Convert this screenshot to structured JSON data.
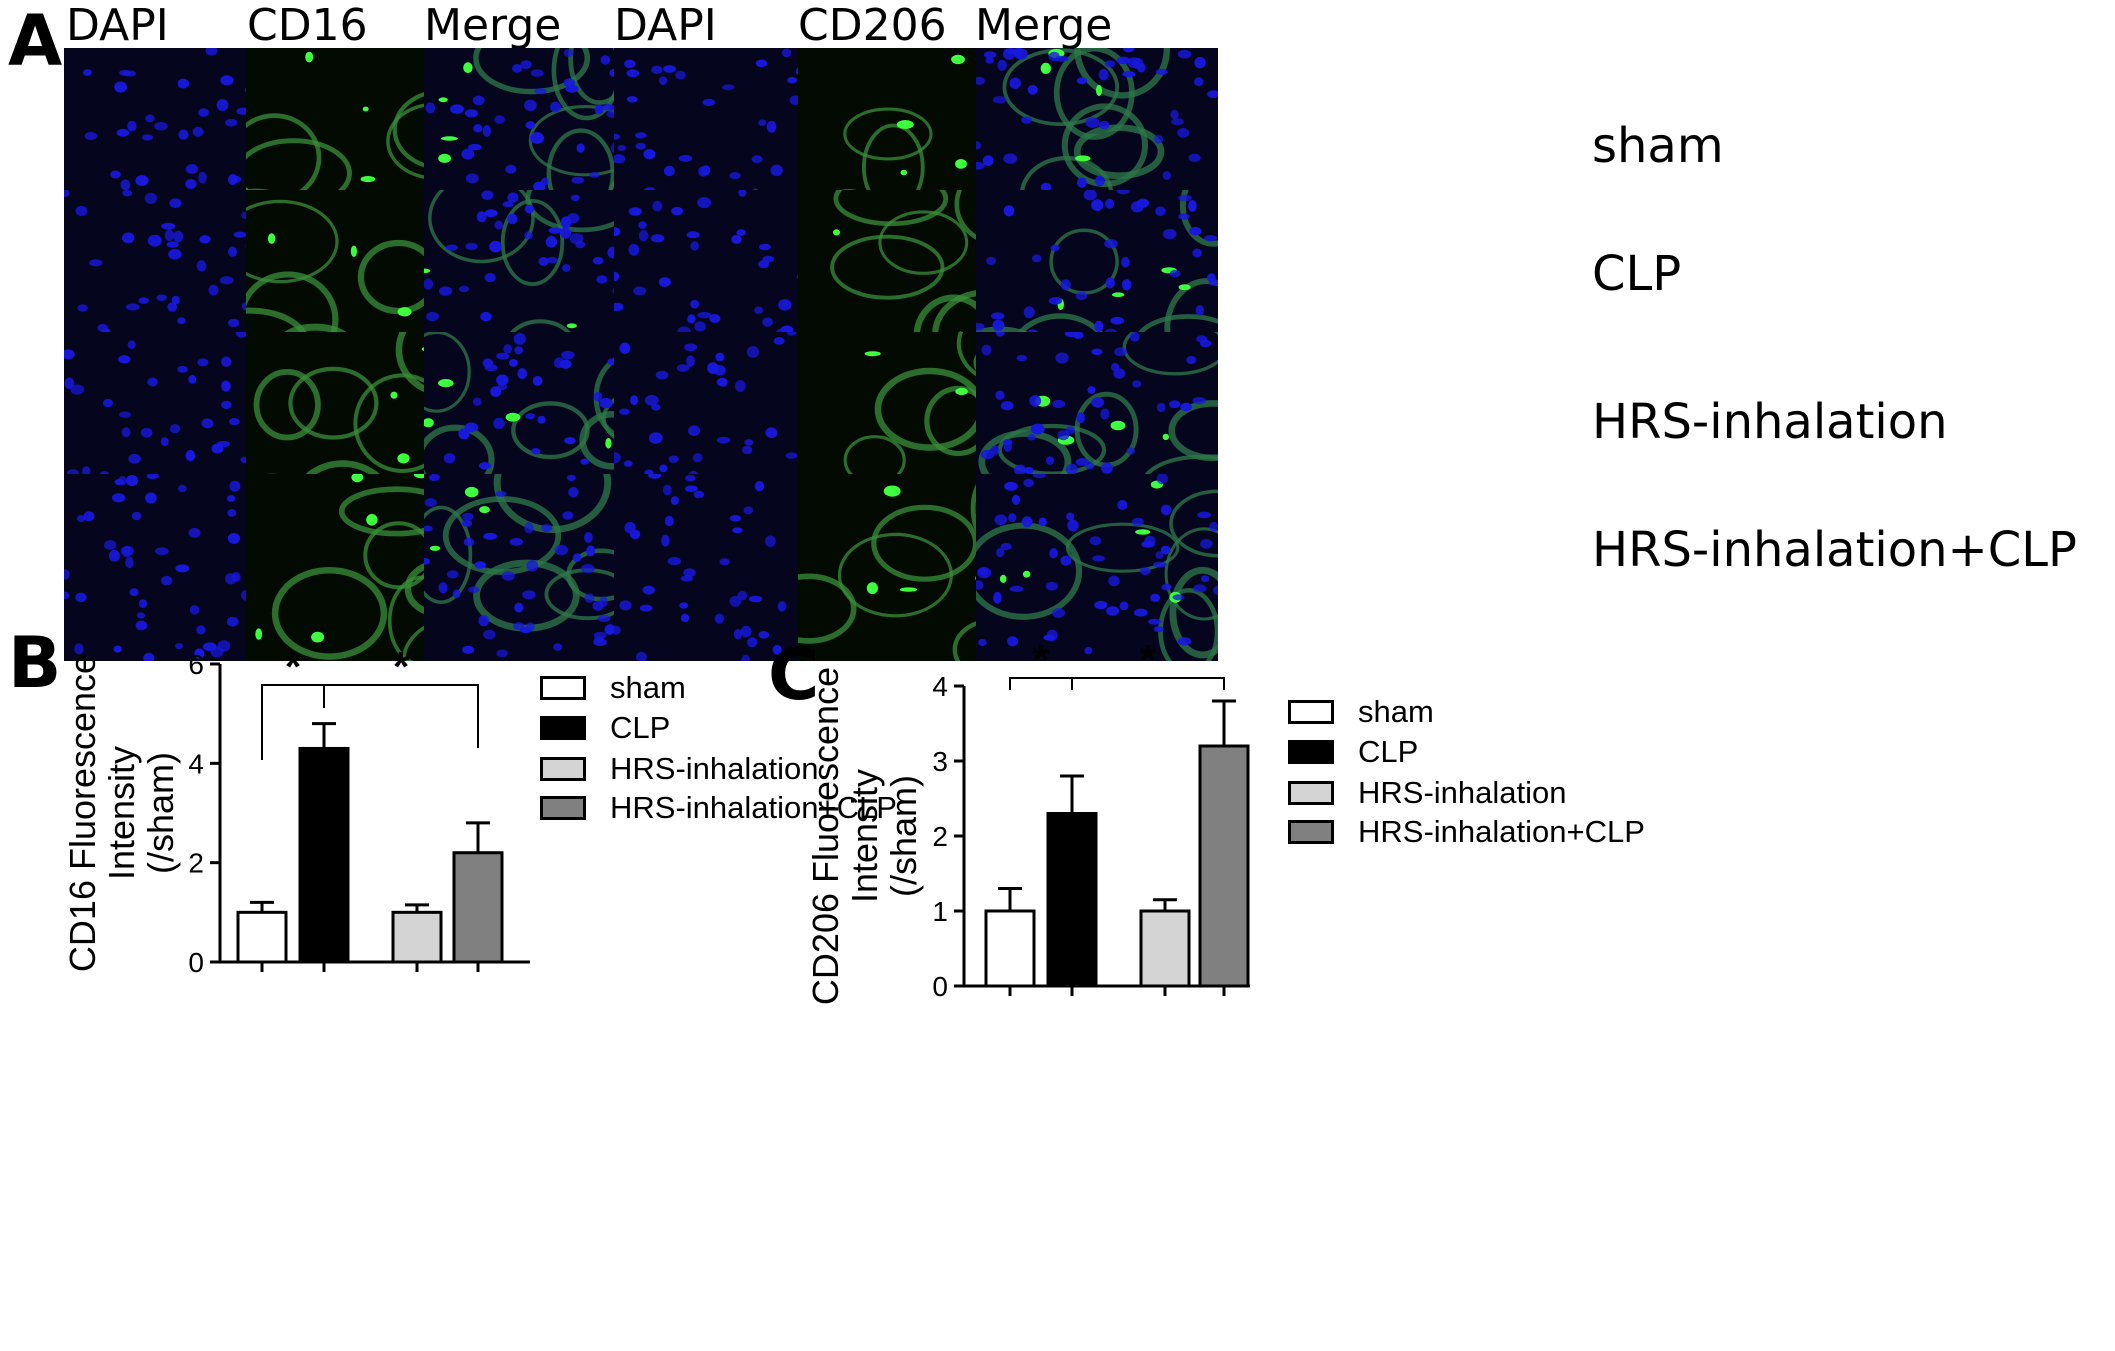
{
  "panel_a": {
    "letter": "A",
    "left_group": {
      "headers": [
        "DAPI",
        "CD16",
        "Merge"
      ]
    },
    "right_group": {
      "headers": [
        "DAPI",
        "CD206",
        "Merge"
      ]
    },
    "rows": [
      "sham",
      "CLP",
      "HRS-inhalation",
      "HRS-inhalation+CLP"
    ],
    "colors": {
      "dapi": "#1818e0",
      "marker": "#2fb82f",
      "background": "#05051e"
    }
  },
  "panel_b": {
    "letter": "B",
    "legend": [
      {
        "label": "sham",
        "color": "#ffffff"
      },
      {
        "label": "CLP",
        "color": "#000000"
      },
      {
        "label": "HRS-inhalation",
        "color": "#d4d4d4"
      },
      {
        "label": "HRS-inhalation+CLP",
        "color": "#808080"
      }
    ]
  },
  "panel_c": {
    "letter": "C",
    "legend": [
      {
        "label": "sham",
        "color": "#ffffff"
      },
      {
        "label": "CLP",
        "color": "#000000"
      },
      {
        "label": "HRS-inhalation",
        "color": "#d4d4d4"
      },
      {
        "label": "HRS-inhalation+CLP",
        "color": "#808080"
      }
    ]
  },
  "chart_data": [
    {
      "type": "bar",
      "panel": "B",
      "ylabel_line1": "CD16 Fluorescence",
      "ylabel_line2": "Intensity",
      "ylabel_line3": "(/sham)",
      "categories": [
        "sham",
        "CLP",
        "HRS-inhalation",
        "HRS-inhalation+CLP"
      ],
      "values": [
        1.0,
        4.3,
        1.0,
        2.2
      ],
      "errors": [
        0.2,
        0.5,
        0.15,
        0.6
      ],
      "colors": [
        "#ffffff",
        "#000000",
        "#d4d4d4",
        "#808080"
      ],
      "ylim": [
        0,
        6
      ],
      "yticks": [
        "0",
        "2",
        "4",
        "6"
      ],
      "significance": [
        {
          "from": 0,
          "to": 1,
          "label": "*"
        },
        {
          "from": 1,
          "to": 3,
          "label": "*"
        }
      ],
      "legend_position": "right",
      "grid": false
    },
    {
      "type": "bar",
      "panel": "C",
      "ylabel_line1": "CD206 Fluorescence",
      "ylabel_line2": "Intensity",
      "ylabel_line3": "(/sham)",
      "categories": [
        "sham",
        "CLP",
        "HRS-inhalation",
        "HRS-inhalation+CLP"
      ],
      "values": [
        1.0,
        2.3,
        1.0,
        3.2
      ],
      "errors": [
        0.3,
        0.5,
        0.15,
        0.6
      ],
      "colors": [
        "#ffffff",
        "#000000",
        "#d4d4d4",
        "#808080"
      ],
      "ylim": [
        0,
        4
      ],
      "yticks": [
        "0",
        "1",
        "2",
        "3",
        "4"
      ],
      "significance": [
        {
          "from": 0,
          "to": 1,
          "label": "*"
        },
        {
          "from": 1,
          "to": 3,
          "label": "*"
        }
      ],
      "legend_position": "right",
      "grid": false
    }
  ]
}
